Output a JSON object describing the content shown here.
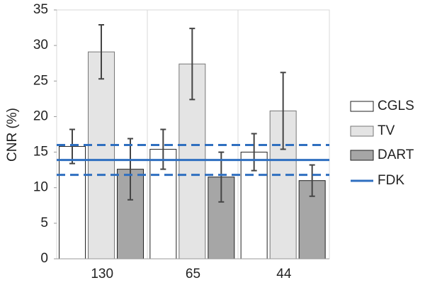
{
  "chart_data": {
    "type": "bar",
    "y_label": "CNR (%)",
    "categories": [
      "130",
      "65",
      "44"
    ],
    "series": [
      {
        "name": "CGLS",
        "color": "#ffffff",
        "values": [
          15.8,
          15.4,
          15.0
        ],
        "errors": [
          2.4,
          2.8,
          2.6
        ]
      },
      {
        "name": "TV",
        "color": "#e4e4e4",
        "values": [
          29.1,
          27.4,
          20.8
        ],
        "errors": [
          3.8,
          5.0,
          5.4
        ]
      },
      {
        "name": "DART",
        "color": "#a6a6a6",
        "values": [
          12.6,
          11.5,
          11.0
        ],
        "errors": [
          4.3,
          3.5,
          2.2
        ]
      }
    ],
    "reference": {
      "name": "FDK",
      "color": "#2f6fc0",
      "value": 13.9,
      "error": 2.1
    },
    "ylim": [
      0,
      35
    ],
    "yticks": [
      0,
      5,
      10,
      15,
      20,
      25,
      30,
      35
    ],
    "grid": false,
    "legend": "right"
  }
}
